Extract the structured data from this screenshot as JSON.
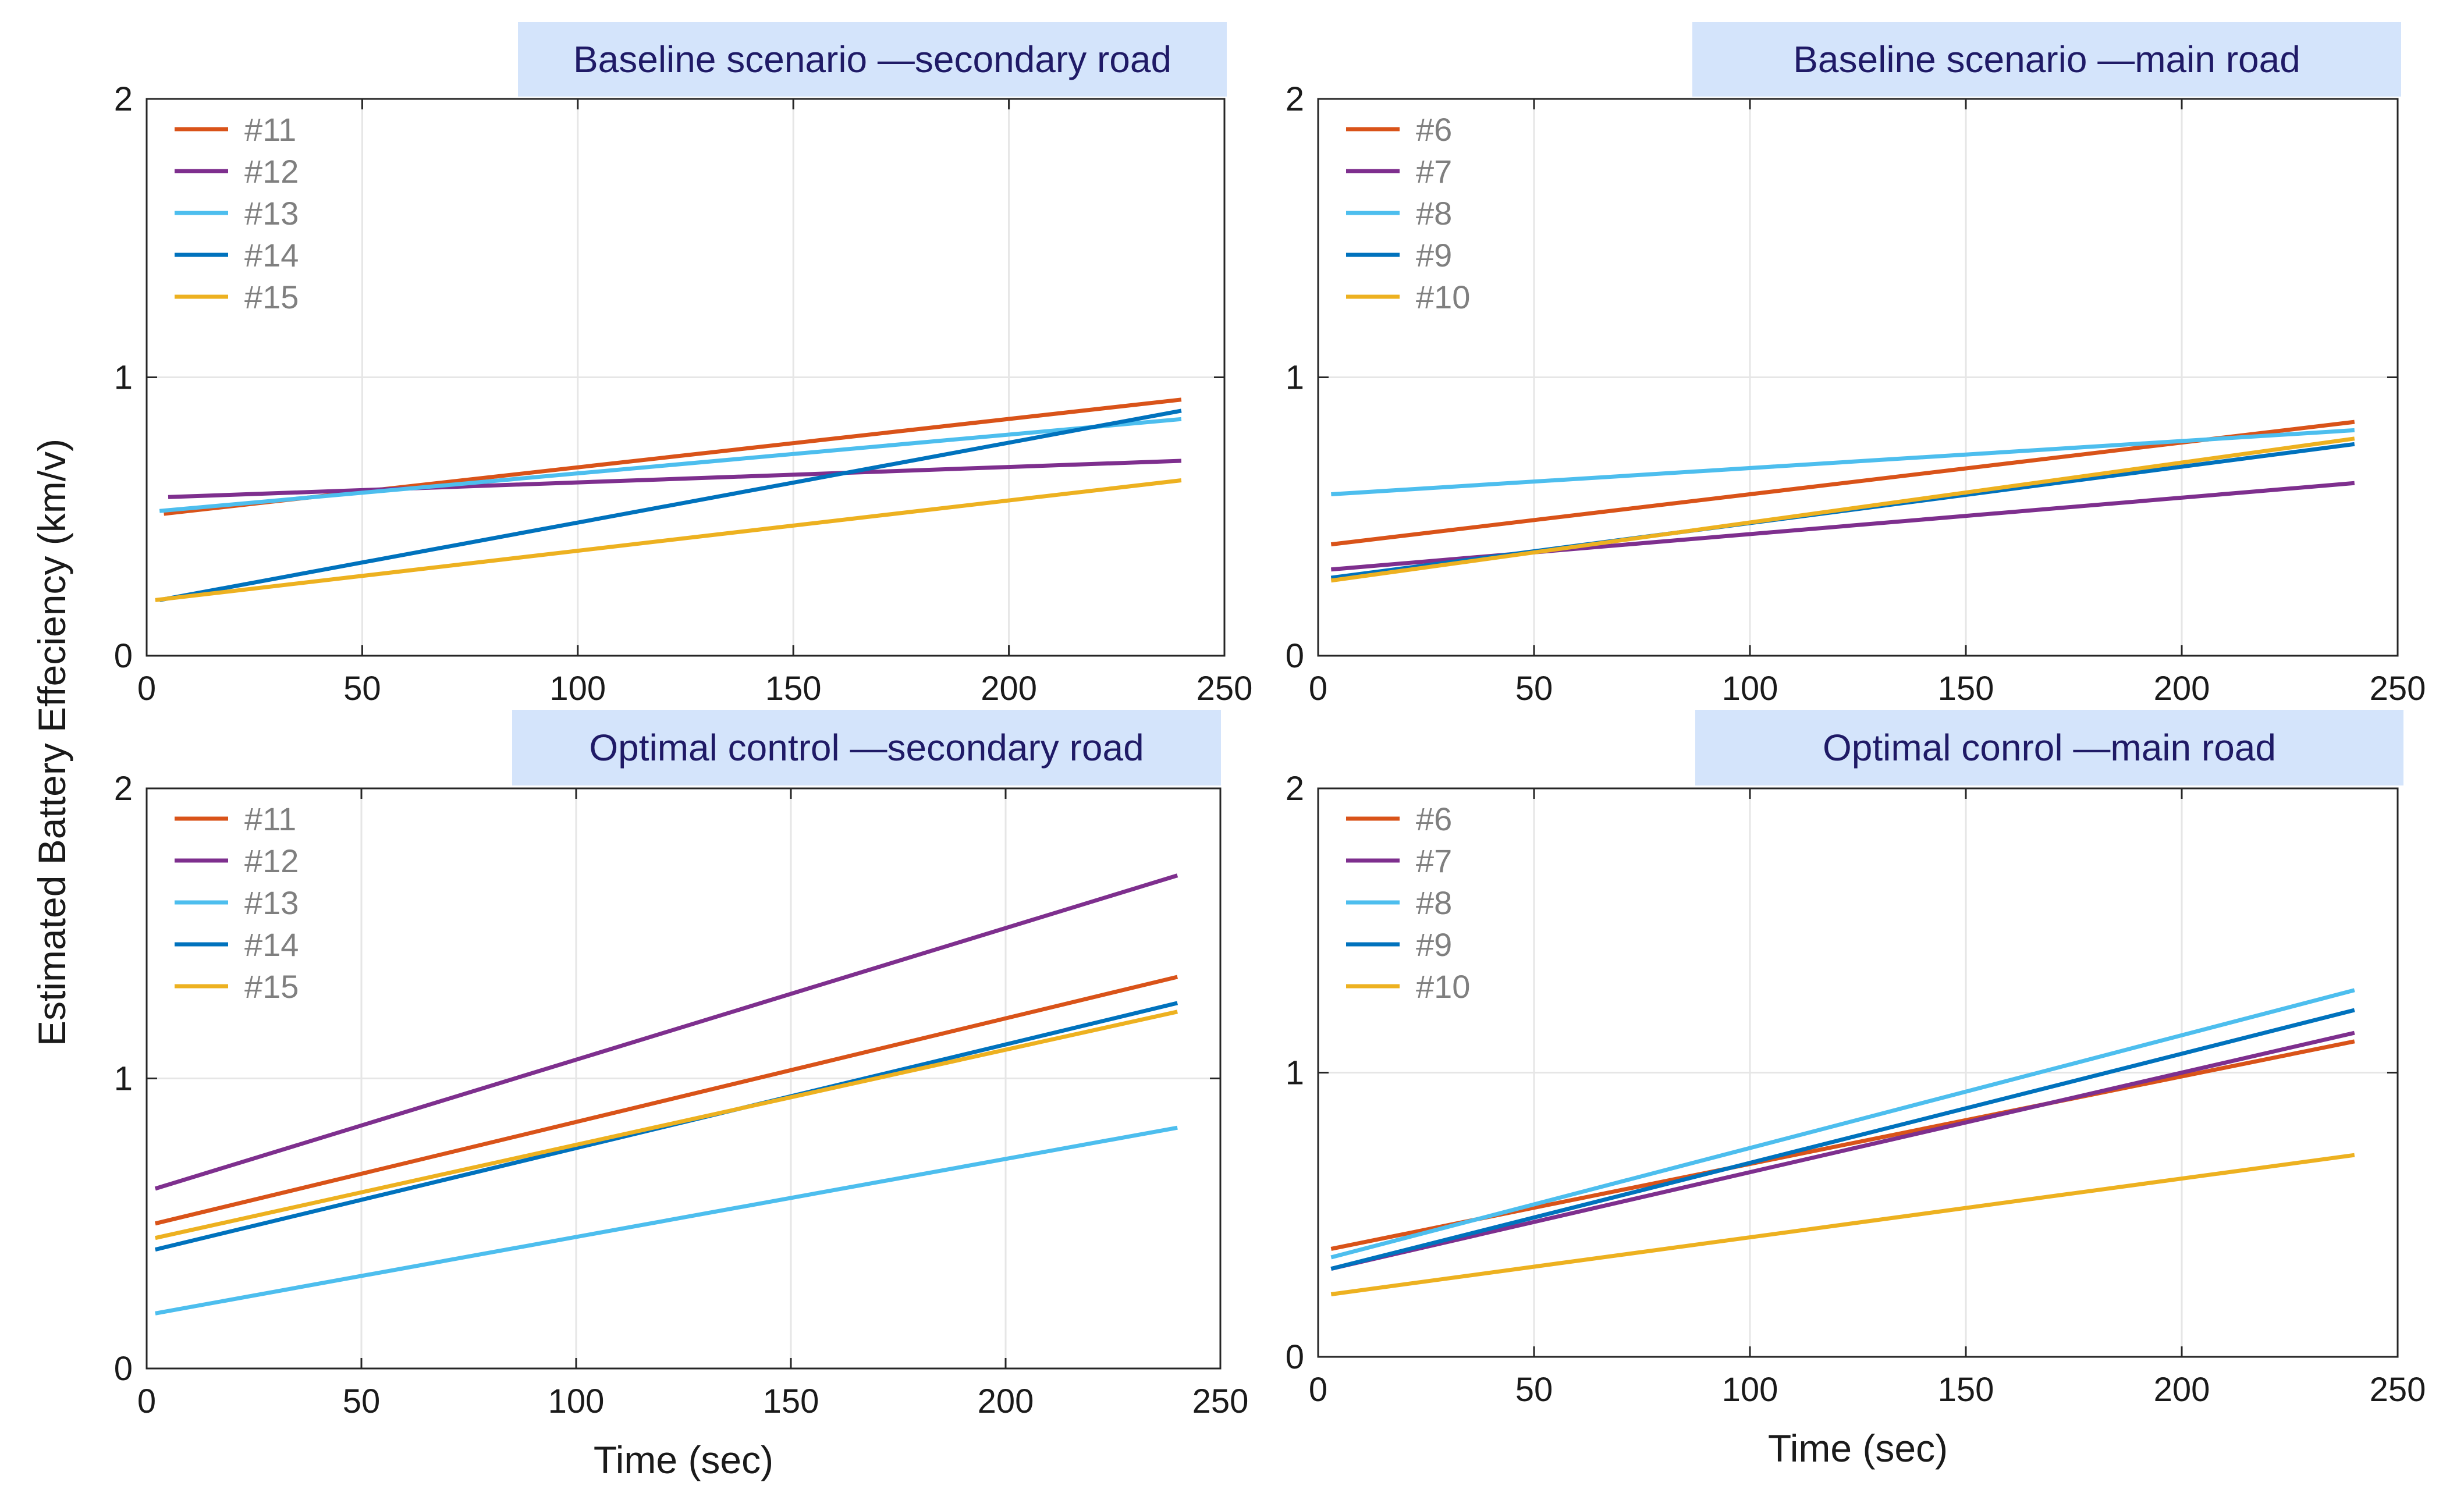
{
  "figure": {
    "shared_ylabel": "Estimated Battery Effeciency (km/v)",
    "colors": {
      "c1": "#d95319",
      "c2": "#7e2f8e",
      "c3": "#4dbeee",
      "c4": "#0072bd",
      "c5": "#edb120",
      "title_bg": "#d4e4fb",
      "title_text": "#1f1a66",
      "legend_text": "#7f7f7f",
      "grid": "#e6e6e6",
      "axis": "#262626"
    }
  },
  "chart_data": [
    {
      "type": "line",
      "title": "Baseline scenario —secondary road",
      "xlabel": "",
      "ylabel": "",
      "xlim": [
        0,
        250
      ],
      "ylim": [
        0,
        2
      ],
      "xticks": [
        0,
        50,
        100,
        150,
        200,
        250
      ],
      "yticks": [
        0,
        1,
        2
      ],
      "grid": true,
      "legend_position": "top-left",
      "series": [
        {
          "name": "#11",
          "color": "#d95319",
          "x": [
            4,
            240
          ],
          "y": [
            0.51,
            0.92
          ]
        },
        {
          "name": "#12",
          "color": "#7e2f8e",
          "x": [
            5,
            240
          ],
          "y": [
            0.57,
            0.7
          ]
        },
        {
          "name": "#13",
          "color": "#4dbeee",
          "x": [
            3,
            240
          ],
          "y": [
            0.52,
            0.85
          ]
        },
        {
          "name": "#14",
          "color": "#0072bd",
          "x": [
            3,
            240
          ],
          "y": [
            0.2,
            0.88
          ]
        },
        {
          "name": "#15",
          "color": "#edb120",
          "x": [
            2,
            240
          ],
          "y": [
            0.2,
            0.63
          ]
        }
      ]
    },
    {
      "type": "line",
      "title": "Baseline scenario —main road",
      "xlabel": "",
      "ylabel": "",
      "xlim": [
        0,
        250
      ],
      "ylim": [
        0,
        2
      ],
      "xticks": [
        0,
        50,
        100,
        150,
        200,
        250
      ],
      "yticks": [
        0,
        1,
        2
      ],
      "grid": true,
      "legend_position": "top-left",
      "series": [
        {
          "name": "#6",
          "color": "#d95319",
          "x": [
            3,
            240
          ],
          "y": [
            0.4,
            0.84
          ]
        },
        {
          "name": "#7",
          "color": "#7e2f8e",
          "x": [
            3,
            240
          ],
          "y": [
            0.31,
            0.62
          ]
        },
        {
          "name": "#8",
          "color": "#4dbeee",
          "x": [
            3,
            240
          ],
          "y": [
            0.58,
            0.81
          ]
        },
        {
          "name": "#9",
          "color": "#0072bd",
          "x": [
            3,
            240
          ],
          "y": [
            0.28,
            0.76
          ]
        },
        {
          "name": "#10",
          "color": "#edb120",
          "x": [
            3,
            240
          ],
          "y": [
            0.27,
            0.78
          ]
        }
      ]
    },
    {
      "type": "line",
      "title": "Optimal control —secondary road",
      "xlabel": "Time (sec)",
      "ylabel": "",
      "xlim": [
        0,
        250
      ],
      "ylim": [
        0,
        2
      ],
      "xticks": [
        0,
        50,
        100,
        150,
        200,
        250
      ],
      "yticks": [
        0,
        1,
        2
      ],
      "grid": true,
      "legend_position": "top-left",
      "series": [
        {
          "name": "#11",
          "color": "#d95319",
          "x": [
            2,
            240
          ],
          "y": [
            0.5,
            1.35
          ]
        },
        {
          "name": "#12",
          "color": "#7e2f8e",
          "x": [
            2,
            240
          ],
          "y": [
            0.62,
            1.7
          ]
        },
        {
          "name": "#13",
          "color": "#4dbeee",
          "x": [
            2,
            240
          ],
          "y": [
            0.19,
            0.83
          ]
        },
        {
          "name": "#14",
          "color": "#0072bd",
          "x": [
            2,
            240
          ],
          "y": [
            0.41,
            1.26
          ]
        },
        {
          "name": "#15",
          "color": "#edb120",
          "x": [
            2,
            240
          ],
          "y": [
            0.45,
            1.23
          ]
        }
      ]
    },
    {
      "type": "line",
      "title": "Optimal conrol —main road",
      "xlabel": "Time (sec)",
      "ylabel": "",
      "xlim": [
        0,
        250
      ],
      "ylim": [
        0,
        2
      ],
      "xticks": [
        0,
        50,
        100,
        150,
        200,
        250
      ],
      "yticks": [
        0,
        1,
        2
      ],
      "grid": true,
      "legend_position": "top-left",
      "series": [
        {
          "name": "#6",
          "color": "#d95319",
          "x": [
            3,
            240
          ],
          "y": [
            0.38,
            1.11
          ]
        },
        {
          "name": "#7",
          "color": "#7e2f8e",
          "x": [
            3,
            240
          ],
          "y": [
            0.31,
            1.14
          ]
        },
        {
          "name": "#8",
          "color": "#4dbeee",
          "x": [
            3,
            240
          ],
          "y": [
            0.35,
            1.29
          ]
        },
        {
          "name": "#9",
          "color": "#0072bd",
          "x": [
            3,
            240
          ],
          "y": [
            0.31,
            1.22
          ]
        },
        {
          "name": "#10",
          "color": "#edb120",
          "x": [
            3,
            240
          ],
          "y": [
            0.22,
            0.71
          ]
        }
      ]
    }
  ]
}
